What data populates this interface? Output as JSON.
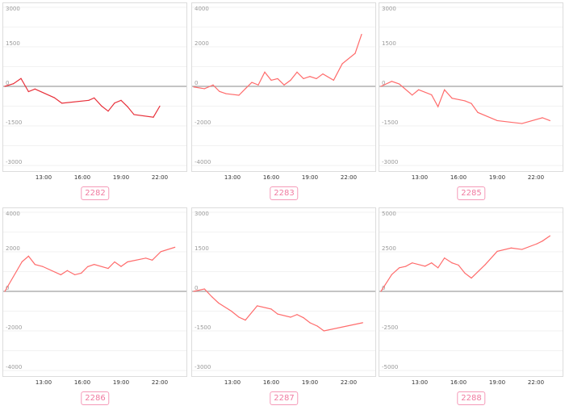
{
  "colors": {
    "line": "#ff6b6b",
    "line_dark": "#e8303a",
    "label": "#f07aa0",
    "grid": "#f2f2f2",
    "zero": "#a0a0a0"
  },
  "chart_data": [
    {
      "type": "line",
      "label": "2282",
      "ylim": [
        -3000,
        3000
      ],
      "yticks": [
        "3000",
        "1500",
        "0",
        "-1500",
        "-3000"
      ],
      "xticks": [
        "13:00",
        "16:00",
        "19:00",
        "22:00"
      ],
      "color": "#e8303a",
      "x": [
        "10:00",
        "10:40",
        "11:15",
        "11:50",
        "12:20",
        "13:50",
        "14:25",
        "16:30",
        "16:55",
        "17:30",
        "18:00",
        "18:30",
        "19:00",
        "19:30",
        "20:00",
        "21:30",
        "22:00"
      ],
      "values": [
        0,
        100,
        300,
        -200,
        -100,
        -430,
        -640,
        -530,
        -440,
        -750,
        -940,
        -630,
        -530,
        -770,
        -1070,
        -1170,
        -750
      ]
    },
    {
      "type": "line",
      "label": "2283",
      "ylim": [
        -4000,
        4000
      ],
      "yticks": [
        "4000",
        "2000",
        "0",
        "-2000",
        "-4000"
      ],
      "xticks": [
        "13:00",
        "16:00",
        "19:00",
        "22:00"
      ],
      "color": "#ff6b6b",
      "x": [
        "10:00",
        "10:50",
        "11:30",
        "12:00",
        "12:30",
        "13:30",
        "14:00",
        "14:30",
        "15:00",
        "15:30",
        "16:00",
        "16:30",
        "17:00",
        "17:30",
        "18:00",
        "18:30",
        "19:00",
        "19:30",
        "20:00",
        "20:50",
        "21:30",
        "22:30",
        "23:00"
      ],
      "values": [
        -30,
        -120,
        70,
        -260,
        -370,
        -450,
        -120,
        200,
        70,
        720,
        310,
        390,
        70,
        310,
        720,
        390,
        500,
        390,
        630,
        310,
        1140,
        1670,
        2630
      ]
    },
    {
      "type": "line",
      "label": "2285",
      "ylim": [
        -3000,
        3000
      ],
      "yticks": [
        "3000",
        "1500",
        "0",
        "-1500",
        "-3000"
      ],
      "xticks": [
        "13:00",
        "16:00",
        "19:00",
        "22:00"
      ],
      "color": "#ff6b6b",
      "x": [
        "10:00",
        "10:50",
        "11:25",
        "12:25",
        "12:55",
        "13:55",
        "14:25",
        "14:55",
        "15:30",
        "16:30",
        "17:00",
        "17:30",
        "19:00",
        "20:55",
        "22:30",
        "23:05"
      ],
      "values": [
        0,
        190,
        90,
        -330,
        -130,
        -320,
        -770,
        -130,
        -450,
        -550,
        -650,
        -990,
        -1300,
        -1410,
        -1190,
        -1300
      ]
    },
    {
      "type": "line",
      "label": "2286",
      "ylim": [
        -4000,
        4000
      ],
      "yticks": [
        "4000",
        "2000",
        "0",
        "-2000",
        "-4000"
      ],
      "xticks": [
        "13:00",
        "16:00",
        "19:00",
        "22:00"
      ],
      "color": "#ff6b6b",
      "x": [
        "10:00",
        "11:20",
        "11:50",
        "12:20",
        "12:55",
        "14:20",
        "14:50",
        "15:25",
        "15:55",
        "16:25",
        "16:55",
        "18:00",
        "18:30",
        "19:00",
        "19:30",
        "20:55",
        "21:25",
        "22:05",
        "23:10"
      ],
      "values": [
        0,
        1500,
        1780,
        1360,
        1260,
        840,
        1050,
        840,
        920,
        1250,
        1360,
        1160,
        1490,
        1260,
        1490,
        1680,
        1580,
        2010,
        2230
      ]
    },
    {
      "type": "line",
      "label": "2287",
      "ylim": [
        -3000,
        3000
      ],
      "yticks": [
        "3000",
        "1500",
        "0",
        "-1500",
        "-3000"
      ],
      "xticks": [
        "13:00",
        "16:00",
        "19:00",
        "22:00"
      ],
      "color": "#ff6b6b",
      "x": [
        "10:00",
        "10:50",
        "11:25",
        "11:55",
        "12:55",
        "13:30",
        "14:00",
        "14:55",
        "16:00",
        "16:30",
        "17:30",
        "18:00",
        "18:30",
        "19:00",
        "19:35",
        "20:05",
        "23:05"
      ],
      "values": [
        0,
        90,
        -210,
        -440,
        -750,
        -980,
        -1090,
        -550,
        -670,
        -860,
        -980,
        -880,
        -1000,
        -1190,
        -1320,
        -1500,
        -1190
      ]
    },
    {
      "type": "line",
      "label": "2288",
      "ylim": [
        -5000,
        5000
      ],
      "yticks": [
        "5000",
        "2500",
        "0",
        "-2500",
        "-5000"
      ],
      "xticks": [
        "13:00",
        "16:00",
        "19:00",
        "22:00"
      ],
      "color": "#ff6b6b",
      "x": [
        "10:00",
        "10:50",
        "11:25",
        "11:55",
        "12:25",
        "13:25",
        "13:55",
        "14:25",
        "14:55",
        "15:30",
        "16:00",
        "16:30",
        "17:00",
        "18:05",
        "19:00",
        "20:05",
        "20:55",
        "22:05",
        "22:30",
        "23:05"
      ],
      "values": [
        0,
        1060,
        1490,
        1580,
        1800,
        1590,
        1800,
        1490,
        2110,
        1800,
        1660,
        1150,
        840,
        1700,
        2530,
        2740,
        2650,
        3010,
        3180,
        3510
      ]
    }
  ]
}
